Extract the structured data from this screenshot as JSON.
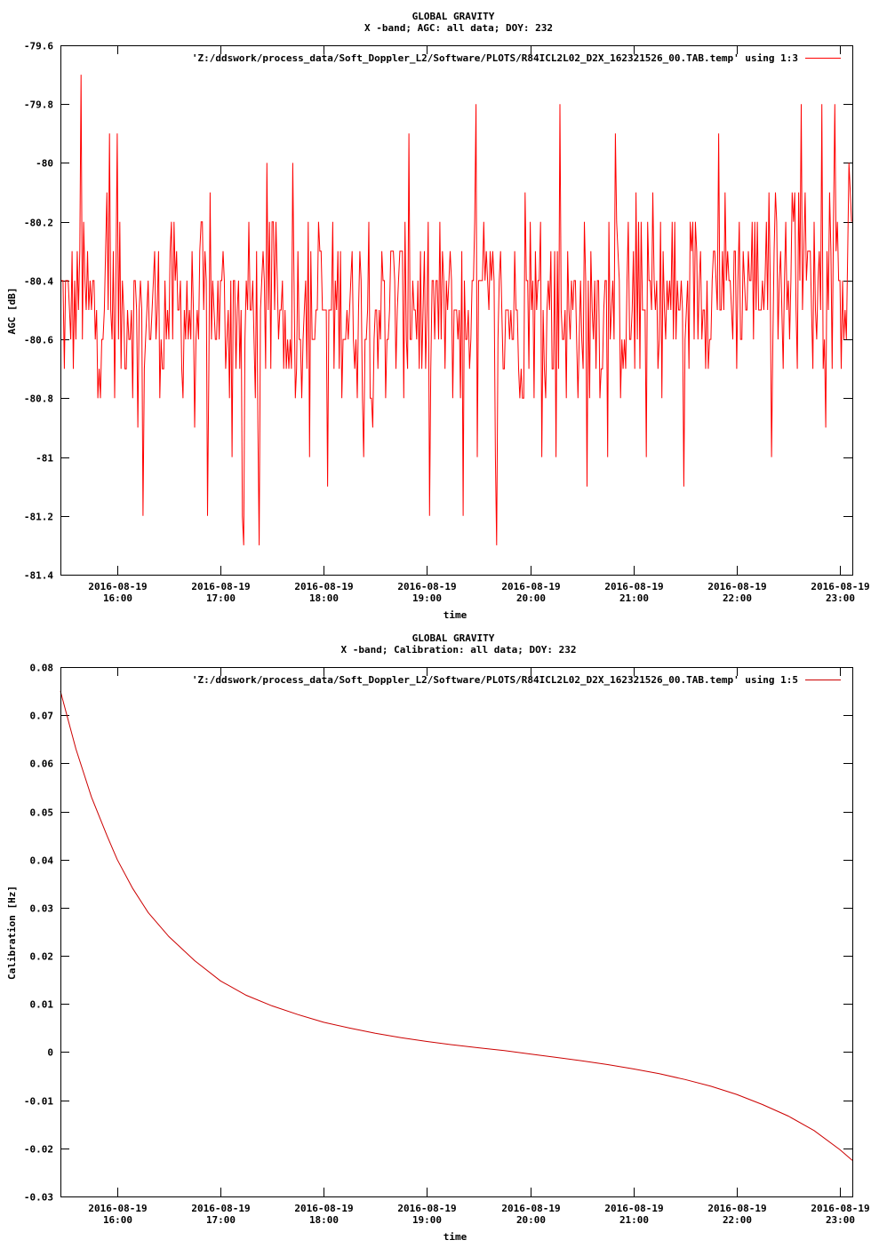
{
  "chart_data": [
    {
      "type": "line",
      "title": "GLOBAL GRAVITY",
      "subtitle": "X -band; AGC: all data; DOY: 232",
      "xlabel": "time",
      "ylabel": "AGC [dB]",
      "ylim": [
        -81.4,
        -79.6
      ],
      "yticks": [
        "-79.6",
        "-79.8",
        "-80",
        "-80.2",
        "-80.4",
        "-80.6",
        "-80.8",
        "-81",
        "-81.2",
        "-81.4"
      ],
      "ytick_values": [
        -79.6,
        -79.8,
        -80.0,
        -80.2,
        -80.4,
        -80.6,
        -80.8,
        -81.0,
        -81.2,
        -81.4
      ],
      "xlim": [
        15.45,
        23.12
      ],
      "xtick_values": [
        16,
        17,
        18,
        19,
        20,
        21,
        22,
        23
      ],
      "xtick_dates": [
        "2016-08-19",
        "2016-08-19",
        "2016-08-19",
        "2016-08-19",
        "2016-08-19",
        "2016-08-19",
        "2016-08-19",
        "2016-08-19"
      ],
      "xtick_times": [
        "16:00",
        "17:00",
        "18:00",
        "19:00",
        "20:00",
        "21:00",
        "22:00",
        "23:00"
      ],
      "grid": false,
      "legend_position": "top-right",
      "series": [
        {
          "name": "'Z:/ddswork/process_data/Soft_Doppler_L2/Software/PLOTS/R84ICL2L02_D2X_162321526_00.TAB.temp' using 1:3",
          "color": "#ff0000",
          "baseline": -80.5,
          "quantization": 0.1,
          "x_step": 0.0125,
          "x_start": 15.45,
          "peaks": [
            {
              "x": 15.65,
              "y": -79.7
            },
            {
              "x": 15.92,
              "y": -79.9
            },
            {
              "x": 16.0,
              "y": -79.9
            },
            {
              "x": 17.45,
              "y": -80.0
            },
            {
              "x": 18.83,
              "y": -79.9
            },
            {
              "x": 19.47,
              "y": -79.8
            },
            {
              "x": 20.29,
              "y": -79.8
            },
            {
              "x": 20.83,
              "y": -79.9
            },
            {
              "x": 21.82,
              "y": -79.9
            },
            {
              "x": 22.62,
              "y": -79.8
            },
            {
              "x": 22.82,
              "y": -79.8
            },
            {
              "x": 22.95,
              "y": -79.8
            },
            {
              "x": 17.21,
              "y": -81.2
            },
            {
              "x": 17.22,
              "y": -81.3
            },
            {
              "x": 17.38,
              "y": -81.3
            },
            {
              "x": 19.67,
              "y": -81.3
            },
            {
              "x": 16.25,
              "y": -81.2
            },
            {
              "x": 16.87,
              "y": -81.2
            },
            {
              "x": 18.04,
              "y": -81.1
            },
            {
              "x": 19.03,
              "y": -81.2
            },
            {
              "x": 19.35,
              "y": -81.2
            },
            {
              "x": 21.49,
              "y": -81.1
            },
            {
              "x": 20.55,
              "y": -81.1
            }
          ]
        }
      ]
    },
    {
      "type": "line",
      "title": "GLOBAL GRAVITY",
      "subtitle": "X -band; Calibration: all data; DOY: 232",
      "xlabel": "time",
      "ylabel": "Calibration [Hz]",
      "ylim": [
        -0.03,
        0.08
      ],
      "yticks": [
        "0.08",
        "0.07",
        "0.06",
        "0.05",
        "0.04",
        "0.03",
        "0.02",
        "0.01",
        "0",
        "-0.01",
        "-0.02",
        "-0.03"
      ],
      "ytick_values": [
        0.08,
        0.07,
        0.06,
        0.05,
        0.04,
        0.03,
        0.02,
        0.01,
        0.0,
        -0.01,
        -0.02,
        -0.03
      ],
      "xlim": [
        15.45,
        23.12
      ],
      "xtick_values": [
        16,
        17,
        18,
        19,
        20,
        21,
        22,
        23
      ],
      "xtick_dates": [
        "2016-08-19",
        "2016-08-19",
        "2016-08-19",
        "2016-08-19",
        "2016-08-19",
        "2016-08-19",
        "2016-08-19",
        "2016-08-19"
      ],
      "xtick_times": [
        "16:00",
        "17:00",
        "18:00",
        "19:00",
        "20:00",
        "21:00",
        "22:00",
        "23:00"
      ],
      "grid": false,
      "legend_position": "top-right",
      "series": [
        {
          "name": "'Z:/ddswork/process_data/Soft_Doppler_L2/Software/PLOTS/R84ICL2L02_D2X_162321526_00.TAB.temp' using 1:5",
          "color": "#cc0000",
          "x": [
            15.45,
            15.6,
            15.75,
            15.9,
            16.0,
            16.15,
            16.3,
            16.5,
            16.75,
            17.0,
            17.25,
            17.5,
            17.75,
            18.0,
            18.25,
            18.5,
            18.75,
            19.0,
            19.25,
            19.5,
            19.75,
            20.0,
            20.25,
            20.5,
            20.75,
            21.0,
            21.25,
            21.5,
            21.75,
            22.0,
            22.25,
            22.5,
            22.75,
            23.0,
            23.12
          ],
          "y": [
            0.075,
            0.063,
            0.053,
            0.045,
            0.04,
            0.034,
            0.029,
            0.024,
            0.019,
            0.0148,
            0.0118,
            0.0096,
            0.0078,
            0.0062,
            0.005,
            0.0039,
            0.003,
            0.0022,
            0.0015,
            0.0009,
            0.0003,
            -0.0004,
            -0.0011,
            -0.0018,
            -0.0026,
            -0.0035,
            -0.0045,
            -0.0057,
            -0.0071,
            -0.0088,
            -0.0109,
            -0.0133,
            -0.0163,
            -0.0203,
            -0.0225
          ]
        }
      ]
    }
  ]
}
